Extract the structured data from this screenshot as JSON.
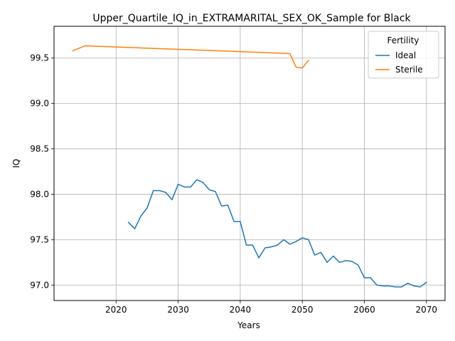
{
  "chart_data": {
    "type": "line",
    "title": "Upper_Quartile_IQ_in_EXTRAMARITAL_SEX_OK_Sample for Black",
    "xlabel": "Years",
    "ylabel": "IQ",
    "xlim": [
      2010,
      2073
    ],
    "ylim": [
      96.83,
      99.85
    ],
    "xticks": [
      2020,
      2030,
      2040,
      2050,
      2060,
      2070
    ],
    "yticks": [
      97.0,
      97.5,
      98.0,
      98.5,
      99.0,
      99.5
    ],
    "xtick_labels": [
      "2020",
      "2030",
      "2040",
      "2050",
      "2060",
      "2070"
    ],
    "ytick_labels": [
      "97.0",
      "97.5",
      "98.0",
      "98.5",
      "99.0",
      "99.5"
    ],
    "grid": true,
    "legend": {
      "title": "Fertility",
      "placement": "top-right"
    },
    "series": [
      {
        "name": "Ideal",
        "color": "#1f77b4",
        "x": [
          2022,
          2023,
          2024,
          2025,
          2026,
          2027,
          2028,
          2029,
          2030,
          2031,
          2032,
          2033,
          2034,
          2035,
          2036,
          2037,
          2038,
          2039,
          2040,
          2041,
          2042,
          2043,
          2044,
          2045,
          2046,
          2047,
          2048,
          2049,
          2050,
          2051,
          2052,
          2053,
          2054,
          2055,
          2056,
          2057,
          2058,
          2059,
          2060,
          2061,
          2062,
          2063,
          2064,
          2065,
          2066,
          2067,
          2068,
          2069,
          2070
        ],
        "y": [
          97.69,
          97.62,
          97.76,
          97.85,
          98.04,
          98.04,
          98.02,
          97.94,
          98.11,
          98.08,
          98.08,
          98.16,
          98.13,
          98.05,
          98.03,
          97.87,
          97.88,
          97.7,
          97.7,
          97.44,
          97.44,
          97.3,
          97.41,
          97.42,
          97.44,
          97.5,
          97.45,
          97.48,
          97.52,
          97.5,
          97.33,
          97.36,
          97.25,
          97.32,
          97.25,
          97.27,
          97.26,
          97.22,
          97.08,
          97.08,
          97.0,
          96.99,
          96.99,
          96.98,
          96.98,
          97.02,
          96.99,
          96.98,
          97.03
        ]
      },
      {
        "name": "Sterile",
        "color": "#ff7f0e",
        "x": [
          2013,
          2015,
          2048,
          2049,
          2050,
          2051
        ],
        "y": [
          99.58,
          99.635,
          99.55,
          99.4,
          99.39,
          99.475
        ]
      }
    ]
  }
}
